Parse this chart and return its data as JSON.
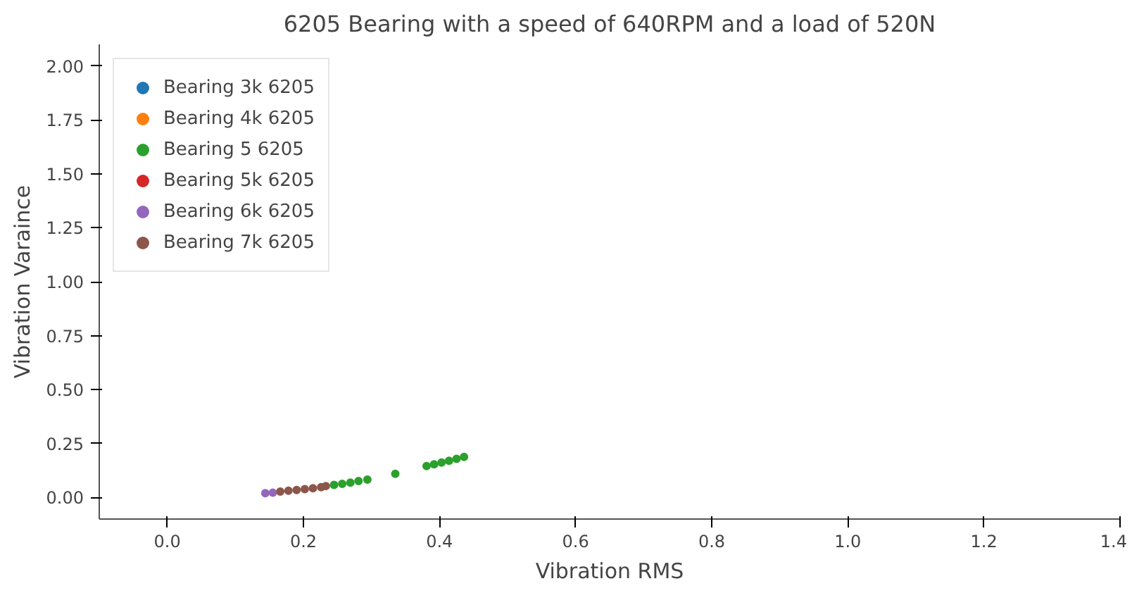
{
  "chart_data": {
    "type": "scatter",
    "title": "6205 Bearing with a speed of 640RPM and a load of 520N",
    "xlabel": "Vibration RMS",
    "ylabel": "Vibration Varaince",
    "xlim": [
      -0.1,
      1.4
    ],
    "ylim": [
      -0.1,
      2.1
    ],
    "xticks": [
      {
        "value": 0,
        "label": "0.0"
      },
      {
        "value": 0.2,
        "label": "0.2"
      },
      {
        "value": 0.4,
        "label": "0.4"
      },
      {
        "value": 0.6,
        "label": "0.6"
      },
      {
        "value": 0.8,
        "label": "0.8"
      },
      {
        "value": 1,
        "label": "1.0"
      },
      {
        "value": 1.2,
        "label": "1.2"
      },
      {
        "value": 1.4,
        "label": "1.4"
      }
    ],
    "yticks": [
      {
        "value": 0,
        "label": "0.00"
      },
      {
        "value": 0.25,
        "label": "0.25"
      },
      {
        "value": 0.5,
        "label": "0.50"
      },
      {
        "value": 0.75,
        "label": "0.75"
      },
      {
        "value": 1,
        "label": "1.00"
      },
      {
        "value": 1.25,
        "label": "1.25"
      },
      {
        "value": 1.5,
        "label": "1.50"
      },
      {
        "value": 1.75,
        "label": "1.75"
      },
      {
        "value": 2,
        "label": "2.00"
      }
    ],
    "grid": false,
    "legend": "top left",
    "marker": "circle",
    "series": [
      {
        "name": "Bearing 3k 6205",
        "color": "#1f77b4",
        "x": [
          null
        ],
        "values": [
          null
        ]
      },
      {
        "name": "Bearing 4k 6205",
        "color": "#ff7f0e",
        "x": [
          null
        ],
        "values": [
          null
        ]
      },
      {
        "name": "Bearing 5 6205",
        "color": "#2ca02c",
        "x": [
          0.245,
          0.257,
          0.269,
          0.281,
          0.294,
          0.335,
          0.381,
          0.392,
          0.403,
          0.414,
          0.425,
          0.436
        ],
        "values": [
          0.058,
          0.063,
          0.069,
          0.076,
          0.083,
          0.11,
          0.146,
          0.154,
          0.162,
          0.17,
          0.179,
          0.188
        ]
      },
      {
        "name": "Bearing 5k 6205",
        "color": "#d62728",
        "x": [
          null
        ],
        "values": [
          null
        ]
      },
      {
        "name": "Bearing 6k 6205",
        "color": "#9467bd",
        "x": [
          0.144,
          0.155
        ],
        "values": [
          0.02,
          0.022
        ]
      },
      {
        "name": "Bearing 7k 6205",
        "color": "#8c564b",
        "x": [
          0.166,
          0.178,
          0.19,
          0.202,
          0.214,
          0.226,
          0.233
        ],
        "values": [
          0.027,
          0.031,
          0.035,
          0.039,
          0.043,
          0.048,
          0.053
        ]
      }
    ]
  }
}
